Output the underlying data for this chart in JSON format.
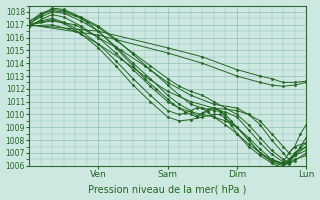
{
  "xlabel": "Pression niveau de la mer( hPa )",
  "bg_color": "#cce8e0",
  "plot_bg_color": "#cce8e0",
  "grid_color": "#99bbbb",
  "line_color": "#226622",
  "marker_color": "#226622",
  "ylim": [
    1006,
    1018.5
  ],
  "yticks": [
    1006,
    1007,
    1008,
    1009,
    1010,
    1011,
    1012,
    1013,
    1014,
    1015,
    1016,
    1017,
    1018
  ],
  "xlim": [
    0,
    96
  ],
  "day_positions": [
    24,
    48,
    72,
    96
  ],
  "day_labels": [
    "Ven",
    "Sam",
    "Dim",
    "Lun"
  ],
  "lines": [
    {
      "pts": [
        [
          0,
          1017.0
        ],
        [
          4,
          1017.8
        ],
        [
          8,
          1018.1
        ],
        [
          12,
          1018.0
        ],
        [
          18,
          1017.5
        ],
        [
          24,
          1016.8
        ],
        [
          30,
          1015.8
        ],
        [
          36,
          1014.8
        ],
        [
          42,
          1013.8
        ],
        [
          48,
          1012.8
        ],
        [
          52,
          1012.2
        ],
        [
          56,
          1011.8
        ],
        [
          60,
          1011.5
        ],
        [
          64,
          1011.0
        ],
        [
          68,
          1010.5
        ],
        [
          72,
          1010.0
        ],
        [
          76,
          1009.2
        ],
        [
          80,
          1008.2
        ],
        [
          84,
          1007.2
        ],
        [
          88,
          1006.5
        ],
        [
          90,
          1006.2
        ],
        [
          92,
          1006.5
        ],
        [
          96,
          1006.8
        ]
      ]
    },
    {
      "pts": [
        [
          0,
          1017.2
        ],
        [
          4,
          1017.9
        ],
        [
          8,
          1018.2
        ],
        [
          12,
          1018.1
        ],
        [
          18,
          1017.6
        ],
        [
          24,
          1016.9
        ],
        [
          30,
          1015.9
        ],
        [
          36,
          1014.7
        ],
        [
          42,
          1013.5
        ],
        [
          48,
          1012.3
        ],
        [
          52,
          1011.5
        ],
        [
          56,
          1010.8
        ],
        [
          60,
          1010.5
        ],
        [
          64,
          1010.3
        ],
        [
          68,
          1010.2
        ],
        [
          72,
          1009.8
        ],
        [
          76,
          1008.8
        ],
        [
          80,
          1007.8
        ],
        [
          84,
          1006.9
        ],
        [
          88,
          1006.3
        ],
        [
          90,
          1006.1
        ],
        [
          92,
          1006.4
        ],
        [
          96,
          1007.0
        ]
      ]
    },
    {
      "pts": [
        [
          0,
          1017.1
        ],
        [
          4,
          1017.6
        ],
        [
          8,
          1018.0
        ],
        [
          12,
          1017.9
        ],
        [
          18,
          1017.3
        ],
        [
          24,
          1016.5
        ],
        [
          30,
          1015.3
        ],
        [
          36,
          1014.0
        ],
        [
          42,
          1012.8
        ],
        [
          48,
          1011.5
        ],
        [
          52,
          1010.8
        ],
        [
          56,
          1010.3
        ],
        [
          58,
          1009.9
        ],
        [
          60,
          1010.1
        ],
        [
          62,
          1010.4
        ],
        [
          64,
          1010.5
        ],
        [
          66,
          1010.3
        ],
        [
          68,
          1010.0
        ],
        [
          70,
          1009.5
        ],
        [
          72,
          1009.0
        ],
        [
          76,
          1008.0
        ],
        [
          80,
          1007.0
        ],
        [
          84,
          1006.3
        ],
        [
          88,
          1006.0
        ],
        [
          90,
          1006.2
        ],
        [
          92,
          1006.8
        ],
        [
          96,
          1007.5
        ]
      ]
    },
    {
      "pts": [
        [
          0,
          1017.3
        ],
        [
          4,
          1017.7
        ],
        [
          8,
          1018.3
        ],
        [
          12,
          1018.2
        ],
        [
          16,
          1017.8
        ],
        [
          20,
          1017.2
        ],
        [
          24,
          1016.5
        ],
        [
          30,
          1015.2
        ],
        [
          36,
          1013.8
        ],
        [
          40,
          1012.8
        ],
        [
          44,
          1012.0
        ],
        [
          48,
          1011.2
        ],
        [
          50,
          1010.8
        ],
        [
          52,
          1010.5
        ],
        [
          54,
          1010.2
        ],
        [
          56,
          1010.0
        ],
        [
          58,
          1009.8
        ],
        [
          60,
          1010.0
        ],
        [
          62,
          1010.3
        ],
        [
          64,
          1010.5
        ],
        [
          66,
          1010.3
        ],
        [
          68,
          1009.8
        ],
        [
          70,
          1009.2
        ],
        [
          72,
          1008.5
        ],
        [
          76,
          1007.5
        ],
        [
          80,
          1006.8
        ],
        [
          84,
          1006.2
        ],
        [
          86,
          1006.0
        ],
        [
          88,
          1006.3
        ],
        [
          90,
          1007.0
        ],
        [
          92,
          1007.5
        ],
        [
          96,
          1007.8
        ]
      ]
    },
    {
      "pts": [
        [
          0,
          1016.8
        ],
        [
          4,
          1017.4
        ],
        [
          8,
          1017.8
        ],
        [
          12,
          1017.6
        ],
        [
          18,
          1016.9
        ],
        [
          24,
          1016.0
        ],
        [
          30,
          1014.8
        ],
        [
          36,
          1013.5
        ],
        [
          42,
          1012.2
        ],
        [
          48,
          1011.0
        ],
        [
          52,
          1010.5
        ],
        [
          56,
          1010.2
        ],
        [
          60,
          1010.0
        ],
        [
          64,
          1009.8
        ],
        [
          68,
          1009.5
        ],
        [
          72,
          1009.0
        ],
        [
          76,
          1008.2
        ],
        [
          80,
          1007.3
        ],
        [
          84,
          1006.5
        ],
        [
          88,
          1006.1
        ],
        [
          90,
          1006.3
        ],
        [
          92,
          1006.8
        ],
        [
          96,
          1007.2
        ]
      ]
    },
    {
      "pts": [
        [
          0,
          1017.0
        ],
        [
          4,
          1017.3
        ],
        [
          8,
          1017.5
        ],
        [
          12,
          1017.2
        ],
        [
          18,
          1016.5
        ],
        [
          24,
          1015.5
        ],
        [
          30,
          1014.2
        ],
        [
          36,
          1012.8
        ],
        [
          42,
          1011.5
        ],
        [
          48,
          1010.3
        ],
        [
          52,
          1010.0
        ],
        [
          54,
          1010.1
        ],
        [
          56,
          1010.3
        ],
        [
          58,
          1010.5
        ],
        [
          60,
          1010.5
        ],
        [
          62,
          1010.2
        ],
        [
          64,
          1009.8
        ],
        [
          68,
          1009.2
        ],
        [
          72,
          1008.5
        ],
        [
          76,
          1007.7
        ],
        [
          80,
          1007.0
        ],
        [
          84,
          1006.5
        ],
        [
          88,
          1006.2
        ],
        [
          90,
          1006.5
        ],
        [
          92,
          1007.0
        ],
        [
          96,
          1007.5
        ]
      ]
    },
    {
      "pts": [
        [
          0,
          1017.0
        ],
        [
          4,
          1017.2
        ],
        [
          8,
          1017.4
        ],
        [
          12,
          1017.1
        ],
        [
          18,
          1016.3
        ],
        [
          24,
          1015.2
        ],
        [
          30,
          1013.8
        ],
        [
          36,
          1012.3
        ],
        [
          42,
          1011.0
        ],
        [
          48,
          1009.8
        ],
        [
          52,
          1009.5
        ],
        [
          56,
          1009.6
        ],
        [
          60,
          1009.8
        ],
        [
          64,
          1010.0
        ],
        [
          66,
          1010.0
        ],
        [
          68,
          1009.7
        ],
        [
          72,
          1009.0
        ],
        [
          76,
          1008.0
        ],
        [
          80,
          1007.0
        ],
        [
          84,
          1006.4
        ],
        [
          88,
          1006.1
        ],
        [
          90,
          1006.4
        ],
        [
          92,
          1007.0
        ],
        [
          96,
          1007.8
        ]
      ]
    },
    {
      "pts": [
        [
          0,
          1017.0
        ],
        [
          8,
          1017.3
        ],
        [
          16,
          1017.0
        ],
        [
          24,
          1016.0
        ],
        [
          32,
          1015.0
        ],
        [
          40,
          1013.8
        ],
        [
          48,
          1012.5
        ],
        [
          56,
          1011.5
        ],
        [
          64,
          1010.8
        ],
        [
          72,
          1010.5
        ],
        [
          76,
          1010.0
        ],
        [
          80,
          1009.2
        ],
        [
          84,
          1008.0
        ],
        [
          88,
          1007.0
        ],
        [
          90,
          1006.5
        ],
        [
          92,
          1006.8
        ],
        [
          94,
          1007.5
        ],
        [
          96,
          1008.2
        ]
      ]
    },
    {
      "pts": [
        [
          0,
          1016.9
        ],
        [
          8,
          1017.0
        ],
        [
          16,
          1016.5
        ],
        [
          24,
          1015.5
        ],
        [
          32,
          1014.3
        ],
        [
          40,
          1013.0
        ],
        [
          48,
          1011.8
        ],
        [
          56,
          1011.0
        ],
        [
          64,
          1010.5
        ],
        [
          72,
          1010.3
        ],
        [
          76,
          1010.0
        ],
        [
          80,
          1009.5
        ],
        [
          84,
          1008.5
        ],
        [
          88,
          1007.5
        ],
        [
          90,
          1007.0
        ],
        [
          92,
          1007.5
        ],
        [
          94,
          1008.5
        ],
        [
          96,
          1009.2
        ]
      ]
    },
    {
      "pts": [
        [
          0,
          1017.0
        ],
        [
          24,
          1016.5
        ],
        [
          48,
          1015.2
        ],
        [
          60,
          1014.5
        ],
        [
          72,
          1013.5
        ],
        [
          80,
          1013.0
        ],
        [
          84,
          1012.8
        ],
        [
          88,
          1012.5
        ],
        [
          92,
          1012.5
        ],
        [
          96,
          1012.6
        ]
      ]
    },
    {
      "pts": [
        [
          0,
          1017.0
        ],
        [
          24,
          1016.2
        ],
        [
          48,
          1014.8
        ],
        [
          60,
          1014.0
        ],
        [
          72,
          1013.0
        ],
        [
          80,
          1012.5
        ],
        [
          84,
          1012.3
        ],
        [
          88,
          1012.2
        ],
        [
          92,
          1012.3
        ],
        [
          96,
          1012.5
        ]
      ]
    }
  ]
}
